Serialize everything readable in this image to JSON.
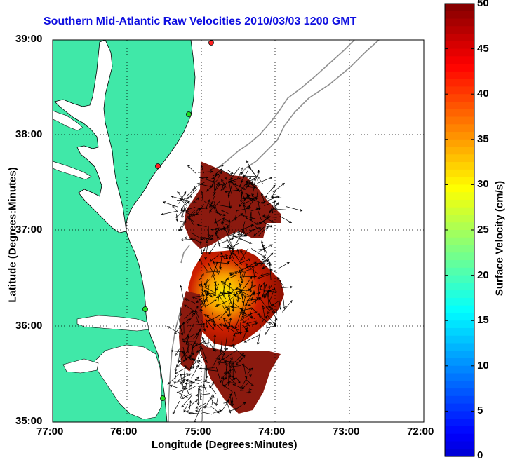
{
  "title": "Southern Mid-Atlantic Raw Velocities 2010/03/03 1200 GMT",
  "xlabel": "Longitude (Degrees:Minutes)",
  "ylabel": "Latitude (Degrees:Minutes)",
  "colorbar": {
    "label": "Surface Velocity (cm/s)",
    "min": 0,
    "max": 50,
    "ticks": [
      "0",
      "5",
      "10",
      "15",
      "20",
      "25",
      "30",
      "35",
      "40",
      "45",
      "50"
    ]
  },
  "xticks": [
    "77:00",
    "76:00",
    "75:00",
    "74:00",
    "73:00",
    "72:00"
  ],
  "yticks": [
    "39:00",
    "38:00",
    "37:00",
    "36:00",
    "35:00"
  ],
  "colors": {
    "land": "#40e8a8",
    "water": "#ffffff",
    "title": "#1010e0",
    "arrows": "#000000",
    "bathymetry": "#909090",
    "grid": "#000000"
  },
  "stations": [
    {
      "name": "station-1",
      "color": "#ff2020"
    },
    {
      "name": "station-2",
      "color": "#20e020"
    },
    {
      "name": "station-3",
      "color": "#ff2020"
    },
    {
      "name": "station-4",
      "color": "#20e020"
    },
    {
      "name": "station-5",
      "color": "#20e020"
    }
  ]
}
